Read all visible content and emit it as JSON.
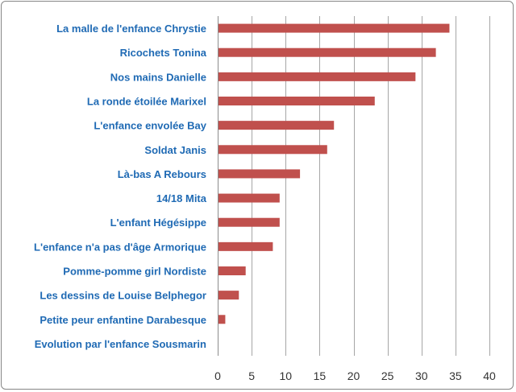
{
  "chart_data": {
    "type": "bar",
    "orientation": "horizontal",
    "categories": [
      "La malle de l'enfance Chrystie",
      "Ricochets Tonina",
      "Nos mains Danielle",
      "La ronde étoilée Marixel",
      "L'enfance envolée Bay",
      "Soldat Janis",
      "Là-bas A Rebours",
      "14/18 Mita",
      "L'enfant Hégésippe",
      "L'enfance n'a pas d'âge Armorique",
      "Pomme-pomme girl Nordiste",
      "Les dessins de Louise Belphegor",
      "Petite peur enfantine Darabesque",
      "Evolution par l'enfance Sousmarin"
    ],
    "values": [
      34,
      32,
      29,
      23,
      17,
      16,
      12,
      9,
      9,
      8,
      4,
      3,
      1,
      0
    ],
    "xlim": [
      0,
      40
    ],
    "xticks": [
      0,
      5,
      10,
      15,
      20,
      25,
      30,
      35,
      40
    ],
    "grid": "vertical",
    "legend": "none",
    "colors": {
      "bar": "#C0504D",
      "label": "#1F6AB4",
      "grid": "#A6A6A6"
    }
  }
}
